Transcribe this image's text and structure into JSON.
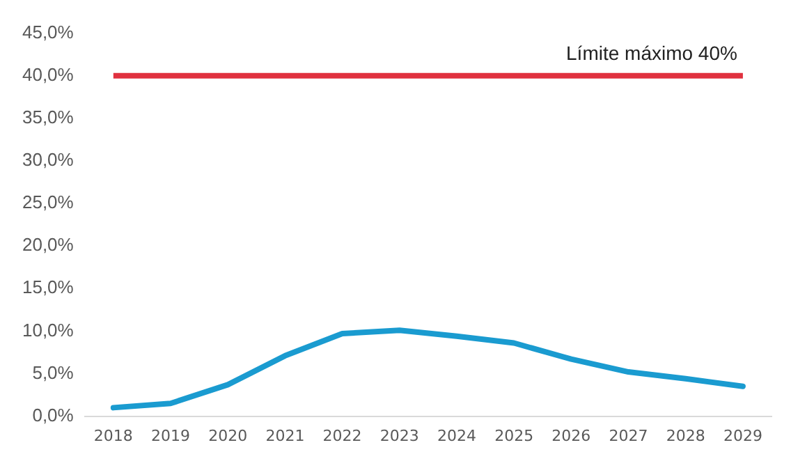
{
  "chart_data": {
    "type": "line",
    "categories": [
      "2018",
      "2019",
      "2020",
      "2021",
      "2022",
      "2023",
      "2024",
      "2025",
      "2026",
      "2027",
      "2028",
      "2029"
    ],
    "series": [
      {
        "color": "#1a9bd0",
        "values": [
          1.0,
          1.5,
          3.7,
          7.1,
          9.7,
          10.1,
          9.4,
          8.6,
          6.7,
          5.2,
          4.4,
          3.5
        ]
      }
    ],
    "ylim": [
      0,
      45
    ],
    "yticks": [
      {
        "value": 0,
        "label": "0,0%"
      },
      {
        "value": 5,
        "label": "5,0%"
      },
      {
        "value": 10,
        "label": "10,0%"
      },
      {
        "value": 15,
        "label": "15,0%"
      },
      {
        "value": 20,
        "label": "20,0%"
      },
      {
        "value": 25,
        "label": "25,0%"
      },
      {
        "value": 30,
        "label": "30,0%"
      },
      {
        "value": 35,
        "label": "35,0%"
      },
      {
        "value": 40,
        "label": "40,0%"
      },
      {
        "value": 45,
        "label": "45,0%"
      }
    ],
    "ref_lines": [
      {
        "axis": "y",
        "value": 40,
        "label": "Límite máximo 40%",
        "color": "#e0313f"
      }
    ],
    "grid": false,
    "legend": false,
    "marker": "none",
    "line_style": "solid"
  }
}
